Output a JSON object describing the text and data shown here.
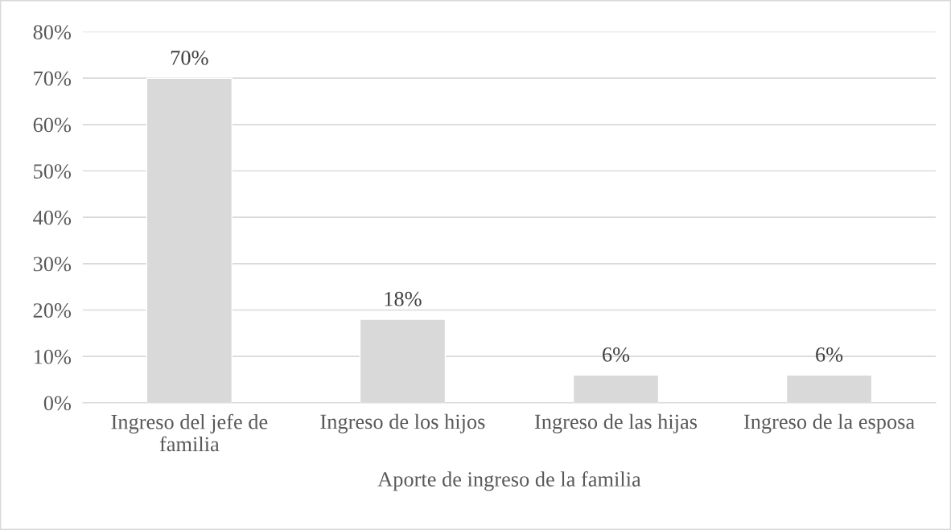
{
  "chart_data": {
    "type": "bar",
    "xlabel": "Aporte de ingreso de la familia",
    "categories": [
      "Ingreso del jefe de\nfamilia",
      "Ingreso de los hijos",
      "Ingreso de las hijas",
      "Ingreso de la esposa"
    ],
    "values": [
      70,
      18,
      6,
      6
    ],
    "value_labels": [
      "70%",
      "18%",
      "6%",
      "6%"
    ],
    "color": "#d9d9d9",
    "ylim": [
      0,
      80
    ],
    "yticks": [
      {
        "value": 0,
        "label": "0%"
      },
      {
        "value": 10,
        "label": "10%"
      },
      {
        "value": 20,
        "label": "20%"
      },
      {
        "value": 30,
        "label": "30%"
      },
      {
        "value": 40,
        "label": "40%"
      },
      {
        "value": 50,
        "label": "50%"
      },
      {
        "value": 60,
        "label": "60%"
      },
      {
        "value": 70,
        "label": "70%"
      },
      {
        "value": 80,
        "label": "80%"
      }
    ],
    "grid": "y",
    "legend": false
  }
}
